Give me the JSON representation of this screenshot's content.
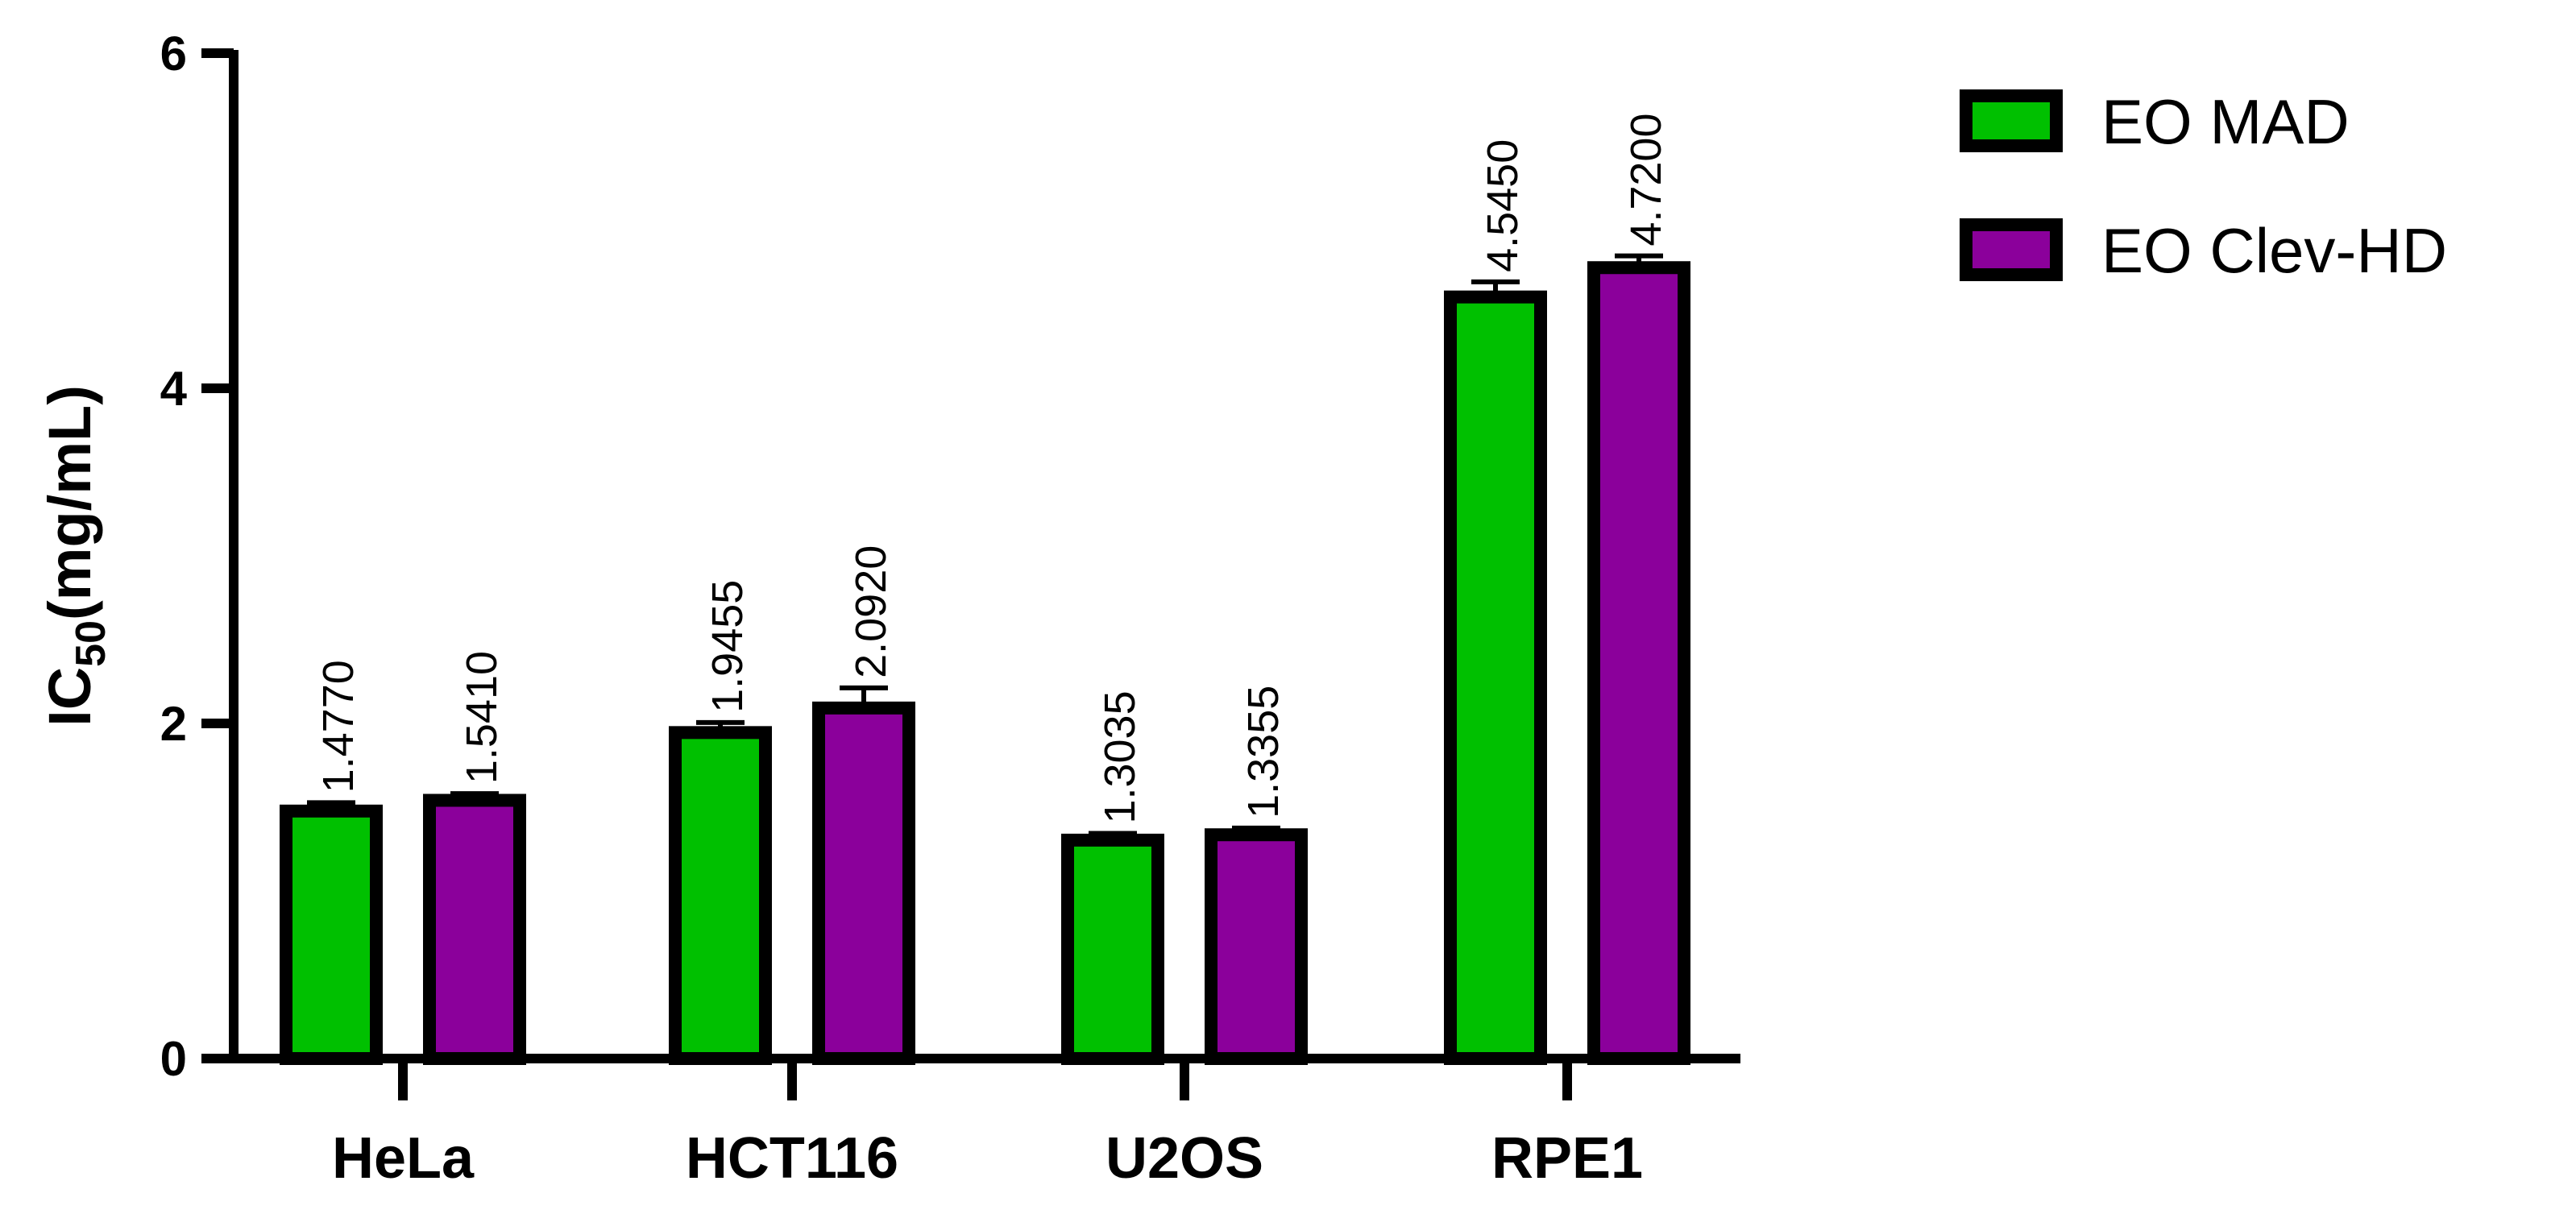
{
  "chart_data": {
    "type": "bar",
    "ylabel": {
      "main": "IC",
      "sub": "50",
      "rest": "(mg/mL)"
    },
    "xlabel": "",
    "ylim": [
      0,
      6
    ],
    "yticks": [
      0,
      2,
      4,
      6
    ],
    "categories": [
      "HeLa",
      "HCT116",
      "U2OS",
      "RPE1"
    ],
    "series": [
      {
        "name": "EO MAD",
        "color": "#00c000",
        "values": [
          1.477,
          1.9455,
          1.3035,
          4.545
        ],
        "labels": [
          "1.4770",
          "1.9455",
          "1.3035",
          "4.5450"
        ],
        "errors": [
          0.05,
          0.06,
          0.04,
          0.09
        ]
      },
      {
        "name": "EO Clev-HD",
        "color": "#8b009b",
        "values": [
          1.541,
          2.092,
          1.3355,
          4.72
        ],
        "labels": [
          "1.5410",
          "2.0920",
          "1.3355",
          "4.7200"
        ],
        "errors": [
          0.04,
          0.12,
          0.04,
          0.07
        ]
      }
    ],
    "legend_position": "top-right",
    "grid": false
  }
}
